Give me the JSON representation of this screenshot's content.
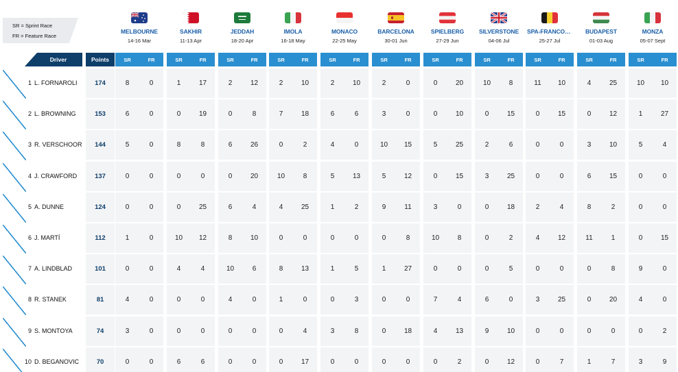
{
  "legend": {
    "sr": "SR = Sprint Race",
    "fr": "FR = Feature Race"
  },
  "headers": {
    "driver": "Driver",
    "points": "Points",
    "sr": "SR",
    "fr": "FR"
  },
  "races": [
    {
      "name": "MELBOURNE",
      "date": "14-16 Mar",
      "flag": "australia-flag-icon"
    },
    {
      "name": "SAKHIR",
      "date": "11-13 Apr",
      "flag": "bahrain-flag-icon"
    },
    {
      "name": "JEDDAH",
      "date": "18-20 Apr",
      "flag": "saudi-arabia-flag-icon"
    },
    {
      "name": "IMOLA",
      "date": "16-18 May",
      "flag": "italy-flag-icon"
    },
    {
      "name": "MONACO",
      "date": "22-25 May",
      "flag": "monaco-flag-icon"
    },
    {
      "name": "BARCELONA",
      "date": "30-01 Jun",
      "flag": "spain-flag-icon"
    },
    {
      "name": "SPIELBERG",
      "date": "27-29 Jun",
      "flag": "austria-flag-icon"
    },
    {
      "name": "SILVERSTONE",
      "date": "04-06 Jul",
      "flag": "uk-flag-icon"
    },
    {
      "name": "SPA-FRANCORC...",
      "date": "25-27 Jul",
      "flag": "belgium-flag-icon"
    },
    {
      "name": "BUDAPEST",
      "date": "01-03 Aug",
      "flag": "hungary-flag-icon"
    },
    {
      "name": "MONZA",
      "date": "05-07 Sept",
      "flag": "italy-flag-icon"
    }
  ],
  "drivers": [
    {
      "pos": "1",
      "name": "L. FORNAROLI",
      "points": "174",
      "results": [
        [
          8,
          0
        ],
        [
          1,
          17
        ],
        [
          2,
          12
        ],
        [
          2,
          10
        ],
        [
          2,
          10
        ],
        [
          2,
          0
        ],
        [
          0,
          20
        ],
        [
          10,
          8
        ],
        [
          11,
          10
        ],
        [
          4,
          25
        ],
        [
          10,
          10
        ]
      ]
    },
    {
      "pos": "2",
      "name": "L. BROWNING",
      "points": "153",
      "results": [
        [
          6,
          0
        ],
        [
          0,
          19
        ],
        [
          0,
          8
        ],
        [
          7,
          18
        ],
        [
          6,
          6
        ],
        [
          3,
          0
        ],
        [
          0,
          10
        ],
        [
          0,
          15
        ],
        [
          0,
          15
        ],
        [
          0,
          12
        ],
        [
          1,
          27
        ]
      ]
    },
    {
      "pos": "3",
      "name": "R. VERSCHOOR",
      "points": "144",
      "results": [
        [
          5,
          0
        ],
        [
          8,
          8
        ],
        [
          6,
          26
        ],
        [
          0,
          2
        ],
        [
          4,
          0
        ],
        [
          10,
          15
        ],
        [
          5,
          25
        ],
        [
          2,
          6
        ],
        [
          0,
          0
        ],
        [
          3,
          10
        ],
        [
          5,
          4
        ]
      ]
    },
    {
      "pos": "4",
      "name": "J. CRAWFORD",
      "points": "137",
      "results": [
        [
          0,
          0
        ],
        [
          0,
          0
        ],
        [
          0,
          20
        ],
        [
          10,
          8
        ],
        [
          5,
          13
        ],
        [
          5,
          12
        ],
        [
          0,
          15
        ],
        [
          3,
          25
        ],
        [
          0,
          0
        ],
        [
          6,
          15
        ],
        [
          0,
          0
        ]
      ]
    },
    {
      "pos": "5",
      "name": "A. DUNNE",
      "points": "124",
      "results": [
        [
          0,
          0
        ],
        [
          0,
          25
        ],
        [
          6,
          4
        ],
        [
          4,
          25
        ],
        [
          1,
          2
        ],
        [
          9,
          11
        ],
        [
          3,
          0
        ],
        [
          0,
          18
        ],
        [
          2,
          4
        ],
        [
          8,
          2
        ],
        [
          0,
          0
        ]
      ]
    },
    {
      "pos": "6",
      "name": "J. MARTÍ",
      "points": "112",
      "results": [
        [
          1,
          0
        ],
        [
          10,
          12
        ],
        [
          8,
          10
        ],
        [
          0,
          0
        ],
        [
          0,
          0
        ],
        [
          0,
          8
        ],
        [
          10,
          8
        ],
        [
          0,
          2
        ],
        [
          4,
          12
        ],
        [
          11,
          1
        ],
        [
          0,
          15
        ]
      ]
    },
    {
      "pos": "7",
      "name": "A. LINDBLAD",
      "points": "101",
      "results": [
        [
          0,
          0
        ],
        [
          4,
          4
        ],
        [
          10,
          6
        ],
        [
          8,
          13
        ],
        [
          1,
          5
        ],
        [
          1,
          27
        ],
        [
          0,
          0
        ],
        [
          0,
          5
        ],
        [
          0,
          0
        ],
        [
          0,
          8
        ],
        [
          9,
          0
        ]
      ]
    },
    {
      "pos": "8",
      "name": "R. STANEK",
      "points": "81",
      "results": [
        [
          4,
          0
        ],
        [
          0,
          0
        ],
        [
          4,
          0
        ],
        [
          1,
          0
        ],
        [
          0,
          3
        ],
        [
          0,
          0
        ],
        [
          7,
          4
        ],
        [
          6,
          0
        ],
        [
          3,
          25
        ],
        [
          0,
          20
        ],
        [
          4,
          0
        ]
      ]
    },
    {
      "pos": "9",
      "name": "S. MONTOYA",
      "points": "74",
      "results": [
        [
          3,
          0
        ],
        [
          0,
          0
        ],
        [
          0,
          0
        ],
        [
          0,
          4
        ],
        [
          3,
          8
        ],
        [
          0,
          18
        ],
        [
          4,
          13
        ],
        [
          9,
          10
        ],
        [
          0,
          0
        ],
        [
          0,
          0
        ],
        [
          0,
          2
        ]
      ]
    },
    {
      "pos": "10",
      "name": "D. BEGANOVIC",
      "points": "70",
      "results": [
        [
          0,
          0
        ],
        [
          6,
          6
        ],
        [
          0,
          0
        ],
        [
          0,
          17
        ],
        [
          0,
          0
        ],
        [
          0,
          0
        ],
        [
          0,
          2
        ],
        [
          0,
          12
        ],
        [
          0,
          7
        ],
        [
          1,
          7
        ],
        [
          3,
          9
        ]
      ]
    }
  ]
}
